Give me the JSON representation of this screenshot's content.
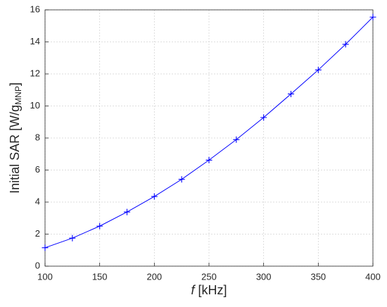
{
  "chart_data": {
    "type": "line",
    "x_label_italic": "f",
    "x_label_rest": " [kHz]",
    "y_label_main": "Initial SAR [W/g",
    "y_label_sub": "MNP",
    "y_label_end": "]",
    "x": [
      100,
      125,
      150,
      175,
      200,
      225,
      250,
      275,
      300,
      325,
      350,
      375,
      400
    ],
    "series": [
      {
        "color": "#0000ff",
        "marker": "+",
        "values": [
          1.15,
          1.75,
          2.5,
          3.38,
          4.35,
          5.42,
          6.62,
          7.9,
          9.28,
          10.75,
          12.25,
          13.85,
          15.55
        ]
      }
    ],
    "xlim": [
      100,
      400
    ],
    "xticks": [
      100,
      150,
      200,
      250,
      300,
      350,
      400
    ],
    "ylim": [
      0,
      16
    ],
    "yticks": [
      0,
      2,
      4,
      6,
      8,
      10,
      12,
      14,
      16
    ],
    "grid": true
  }
}
